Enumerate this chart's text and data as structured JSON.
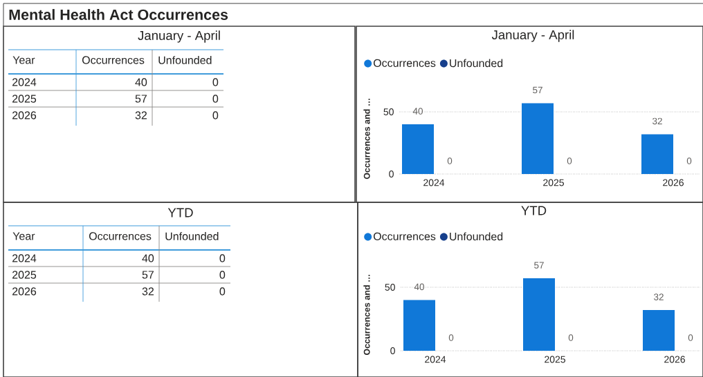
{
  "chart_data": [
    {
      "type": "other",
      "title": "Mental Health Act Occurrences",
      "subtitle": "January - April",
      "xlabel": "Year",
      "categories": [
        "2024",
        "2025",
        "2026"
      ],
      "series": [
        {
          "name": "Occurrences",
          "values": [
            40,
            57,
            32
          ]
        },
        {
          "name": "Unfounded",
          "values": [
            0,
            0,
            0
          ]
        }
      ],
      "data_labels": true
    },
    {
      "type": "bar",
      "title": "January - April",
      "ylabel": "Occurrences and …",
      "categories": [
        "2024",
        "2025",
        "2026"
      ],
      "series": [
        {
          "name": "Occurrences",
          "color": "#1078d8",
          "values": [
            40,
            57,
            32
          ]
        },
        {
          "name": "Unfounded",
          "color": "#163f8c",
          "values": [
            0,
            0,
            0
          ]
        }
      ],
      "ylim": [
        0,
        57
      ],
      "yticks": [
        0,
        50
      ],
      "grid": "y",
      "legend": "top left",
      "data_labels": true
    },
    {
      "type": "other",
      "title": "YTD",
      "xlabel": "Year",
      "categories": [
        "2024",
        "2025",
        "2026"
      ],
      "series": [
        {
          "name": "Occurrences",
          "values": [
            40,
            57,
            32
          ]
        },
        {
          "name": "Unfounded",
          "values": [
            0,
            0,
            0
          ]
        }
      ],
      "data_labels": true
    },
    {
      "type": "bar",
      "title": "YTD",
      "ylabel": "Occurrences and …",
      "categories": [
        "2024",
        "2025",
        "2026"
      ],
      "series": [
        {
          "name": "Occurrences",
          "color": "#1078d8",
          "values": [
            40,
            57,
            32
          ]
        },
        {
          "name": "Unfounded",
          "color": "#163f8c",
          "values": [
            0,
            0,
            0
          ]
        }
      ],
      "ylim": [
        0,
        57
      ],
      "yticks": [
        0,
        50
      ],
      "grid": "y",
      "legend": "top left",
      "data_labels": true
    }
  ]
}
